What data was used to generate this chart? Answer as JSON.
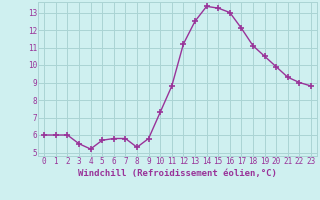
{
  "x": [
    0,
    1,
    2,
    3,
    4,
    5,
    6,
    7,
    8,
    9,
    10,
    11,
    12,
    13,
    14,
    15,
    16,
    17,
    18,
    19,
    20,
    21,
    22,
    23
  ],
  "y": [
    6.0,
    6.0,
    6.0,
    5.5,
    5.2,
    5.7,
    5.8,
    5.8,
    5.3,
    5.8,
    7.3,
    8.8,
    11.2,
    12.5,
    13.35,
    13.25,
    13.0,
    12.1,
    11.1,
    10.5,
    9.9,
    9.3,
    9.0,
    8.8
  ],
  "line_color": "#993399",
  "marker": "+",
  "marker_size": 4,
  "marker_lw": 1.2,
  "line_width": 1.0,
  "bg_color": "#cff0f0",
  "grid_color": "#aad4d4",
  "xlabel": "Windchill (Refroidissement éolien,°C)",
  "xlabel_color": "#993399",
  "tick_color": "#993399",
  "ylim": [
    4.8,
    13.6
  ],
  "yticks": [
    5,
    6,
    7,
    8,
    9,
    10,
    11,
    12,
    13
  ],
  "xlim": [
    -0.5,
    23.5
  ],
  "xticks": [
    0,
    1,
    2,
    3,
    4,
    5,
    6,
    7,
    8,
    9,
    10,
    11,
    12,
    13,
    14,
    15,
    16,
    17,
    18,
    19,
    20,
    21,
    22,
    23
  ],
  "tick_label_size": 5.5,
  "xlabel_size": 6.5
}
